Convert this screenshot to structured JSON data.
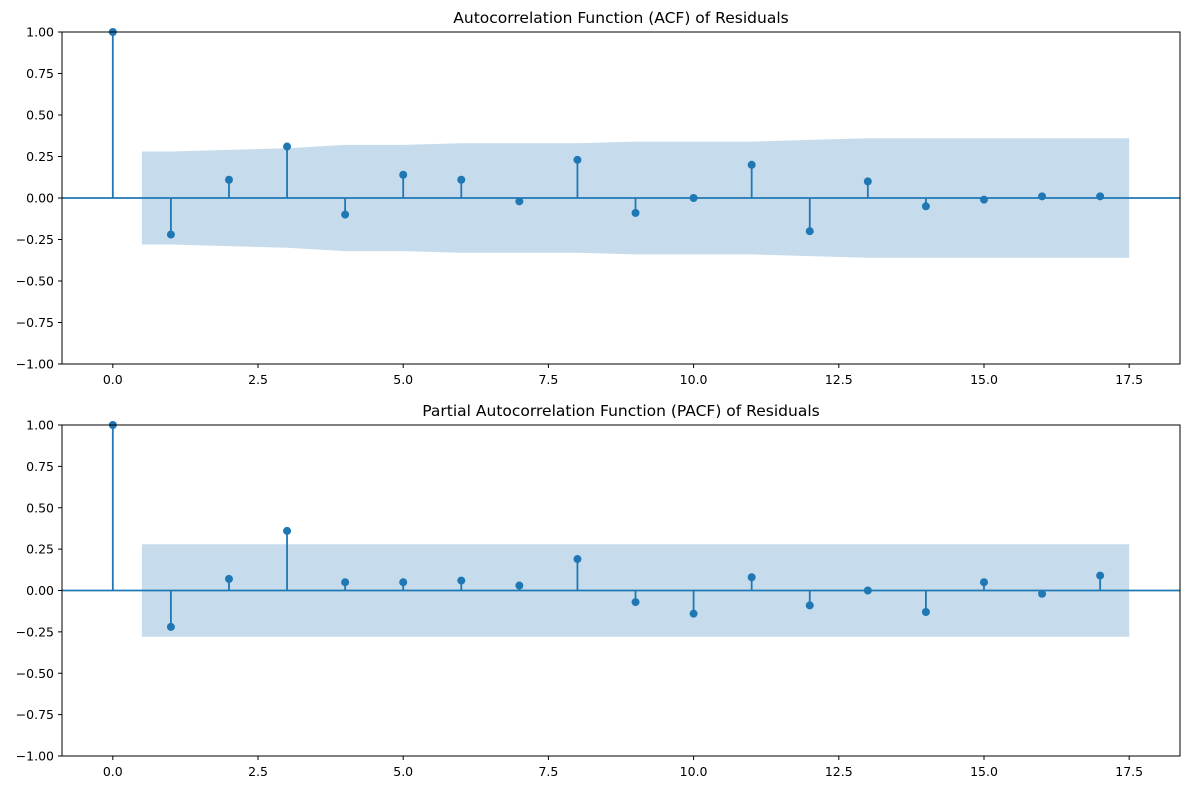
{
  "chart_data": [
    {
      "type": "stem",
      "title": "Autocorrelation Function (ACF) of Residuals",
      "xlabel": "",
      "ylabel": "",
      "xlim": [
        -0.875,
        18.375
      ],
      "ylim": [
        -1.0,
        1.0
      ],
      "xticks": [
        0.0,
        2.5,
        5.0,
        7.5,
        10.0,
        12.5,
        15.0,
        17.5
      ],
      "xtick_labels": [
        "0.0",
        "2.5",
        "5.0",
        "7.5",
        "10.0",
        "12.5",
        "15.0",
        "17.5"
      ],
      "yticks": [
        -1.0,
        -0.75,
        -0.5,
        -0.25,
        0.0,
        0.25,
        0.5,
        0.75,
        1.0
      ],
      "ytick_labels": [
        "−1.00",
        "−0.75",
        "−0.50",
        "−0.25",
        "0.00",
        "0.25",
        "0.50",
        "0.75",
        "1.00"
      ],
      "grid": false,
      "color": "#1f77b4",
      "band_color": "#c6dcec",
      "x": [
        0,
        1,
        2,
        3,
        4,
        5,
        6,
        7,
        8,
        9,
        10,
        11,
        12,
        13,
        14,
        15,
        16,
        17
      ],
      "values": [
        1.0,
        -0.22,
        0.11,
        0.31,
        -0.1,
        0.14,
        0.11,
        -0.02,
        0.23,
        -0.09,
        0.0,
        0.2,
        -0.2,
        0.1,
        -0.05,
        -0.01,
        0.01,
        0.01
      ],
      "confidence_band": {
        "x": [
          0.5,
          1,
          2,
          3,
          4,
          5,
          6,
          7,
          8,
          9,
          10,
          11,
          12,
          13,
          14,
          15,
          16,
          17,
          17.5
        ],
        "upper": [
          0.28,
          0.28,
          0.29,
          0.3,
          0.32,
          0.32,
          0.33,
          0.33,
          0.33,
          0.34,
          0.34,
          0.34,
          0.35,
          0.36,
          0.36,
          0.36,
          0.36,
          0.36,
          0.36
        ]
      }
    },
    {
      "type": "stem",
      "title": "Partial Autocorrelation Function (PACF) of Residuals",
      "xlabel": "",
      "ylabel": "",
      "xlim": [
        -0.875,
        18.375
      ],
      "ylim": [
        -1.0,
        1.0
      ],
      "xticks": [
        0.0,
        2.5,
        5.0,
        7.5,
        10.0,
        12.5,
        15.0,
        17.5
      ],
      "xtick_labels": [
        "0.0",
        "2.5",
        "5.0",
        "7.5",
        "10.0",
        "12.5",
        "15.0",
        "17.5"
      ],
      "yticks": [
        -1.0,
        -0.75,
        -0.5,
        -0.25,
        0.0,
        0.25,
        0.5,
        0.75,
        1.0
      ],
      "ytick_labels": [
        "−1.00",
        "−0.75",
        "−0.50",
        "−0.25",
        "0.00",
        "0.25",
        "0.50",
        "0.75",
        "1.00"
      ],
      "grid": false,
      "color": "#1f77b4",
      "band_color": "#c6dcec",
      "x": [
        0,
        1,
        2,
        3,
        4,
        5,
        6,
        7,
        8,
        9,
        10,
        11,
        12,
        13,
        14,
        15,
        16,
        17
      ],
      "values": [
        1.0,
        -0.22,
        0.07,
        0.36,
        0.05,
        0.05,
        0.06,
        0.03,
        0.19,
        -0.07,
        -0.14,
        0.08,
        -0.09,
        0.0,
        -0.13,
        0.05,
        -0.02,
        0.09
      ],
      "confidence_band": {
        "x": [
          0.5,
          17.5
        ],
        "upper": [
          0.28,
          0.28
        ]
      }
    }
  ]
}
